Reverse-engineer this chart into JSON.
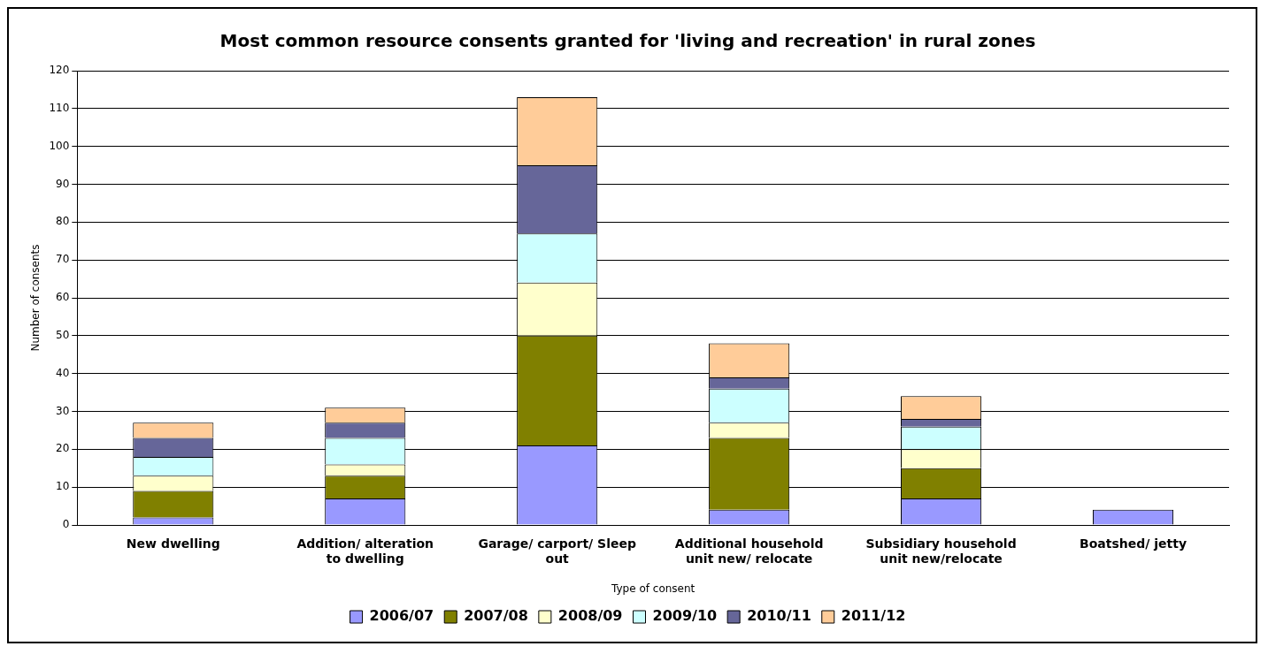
{
  "chart_data": {
    "type": "bar",
    "title": "Most common resource consents granted for 'living and recreation' in rural zones",
    "xlabel": "Type of consent",
    "ylabel": "Number of consents",
    "categories": [
      "New dwelling",
      "Addition/ alteration to dwelling",
      "Garage/ carport/ Sleep out",
      "Additional household unit new/ relocate",
      "Subsidiary household unit new/relocate",
      "Boatshed/ jetty"
    ],
    "stacked": true,
    "series": [
      {
        "name": "2006/07",
        "color": "#9999ff",
        "values": [
          2,
          7,
          21,
          4,
          7,
          4
        ]
      },
      {
        "name": "2007/08",
        "color": "#808000",
        "values": [
          7,
          6,
          29,
          19,
          8,
          0
        ]
      },
      {
        "name": "2008/09",
        "color": "#ffffcc",
        "values": [
          4,
          3,
          14,
          4,
          5,
          0
        ]
      },
      {
        "name": "2009/10",
        "color": "#ccffff",
        "values": [
          5,
          7,
          13,
          9,
          6,
          0
        ]
      },
      {
        "name": "2010/11",
        "color": "#666699",
        "values": [
          5,
          4,
          18,
          3,
          2,
          0
        ]
      },
      {
        "name": "2011/12",
        "color": "#ffcc99",
        "values": [
          4,
          4,
          18,
          9,
          6,
          0
        ]
      }
    ],
    "ylim": [
      0,
      120
    ],
    "yticks": [
      0,
      10,
      20,
      30,
      40,
      50,
      60,
      70,
      80,
      90,
      100,
      110,
      120
    ],
    "grid": "y",
    "legend": "bottom"
  }
}
